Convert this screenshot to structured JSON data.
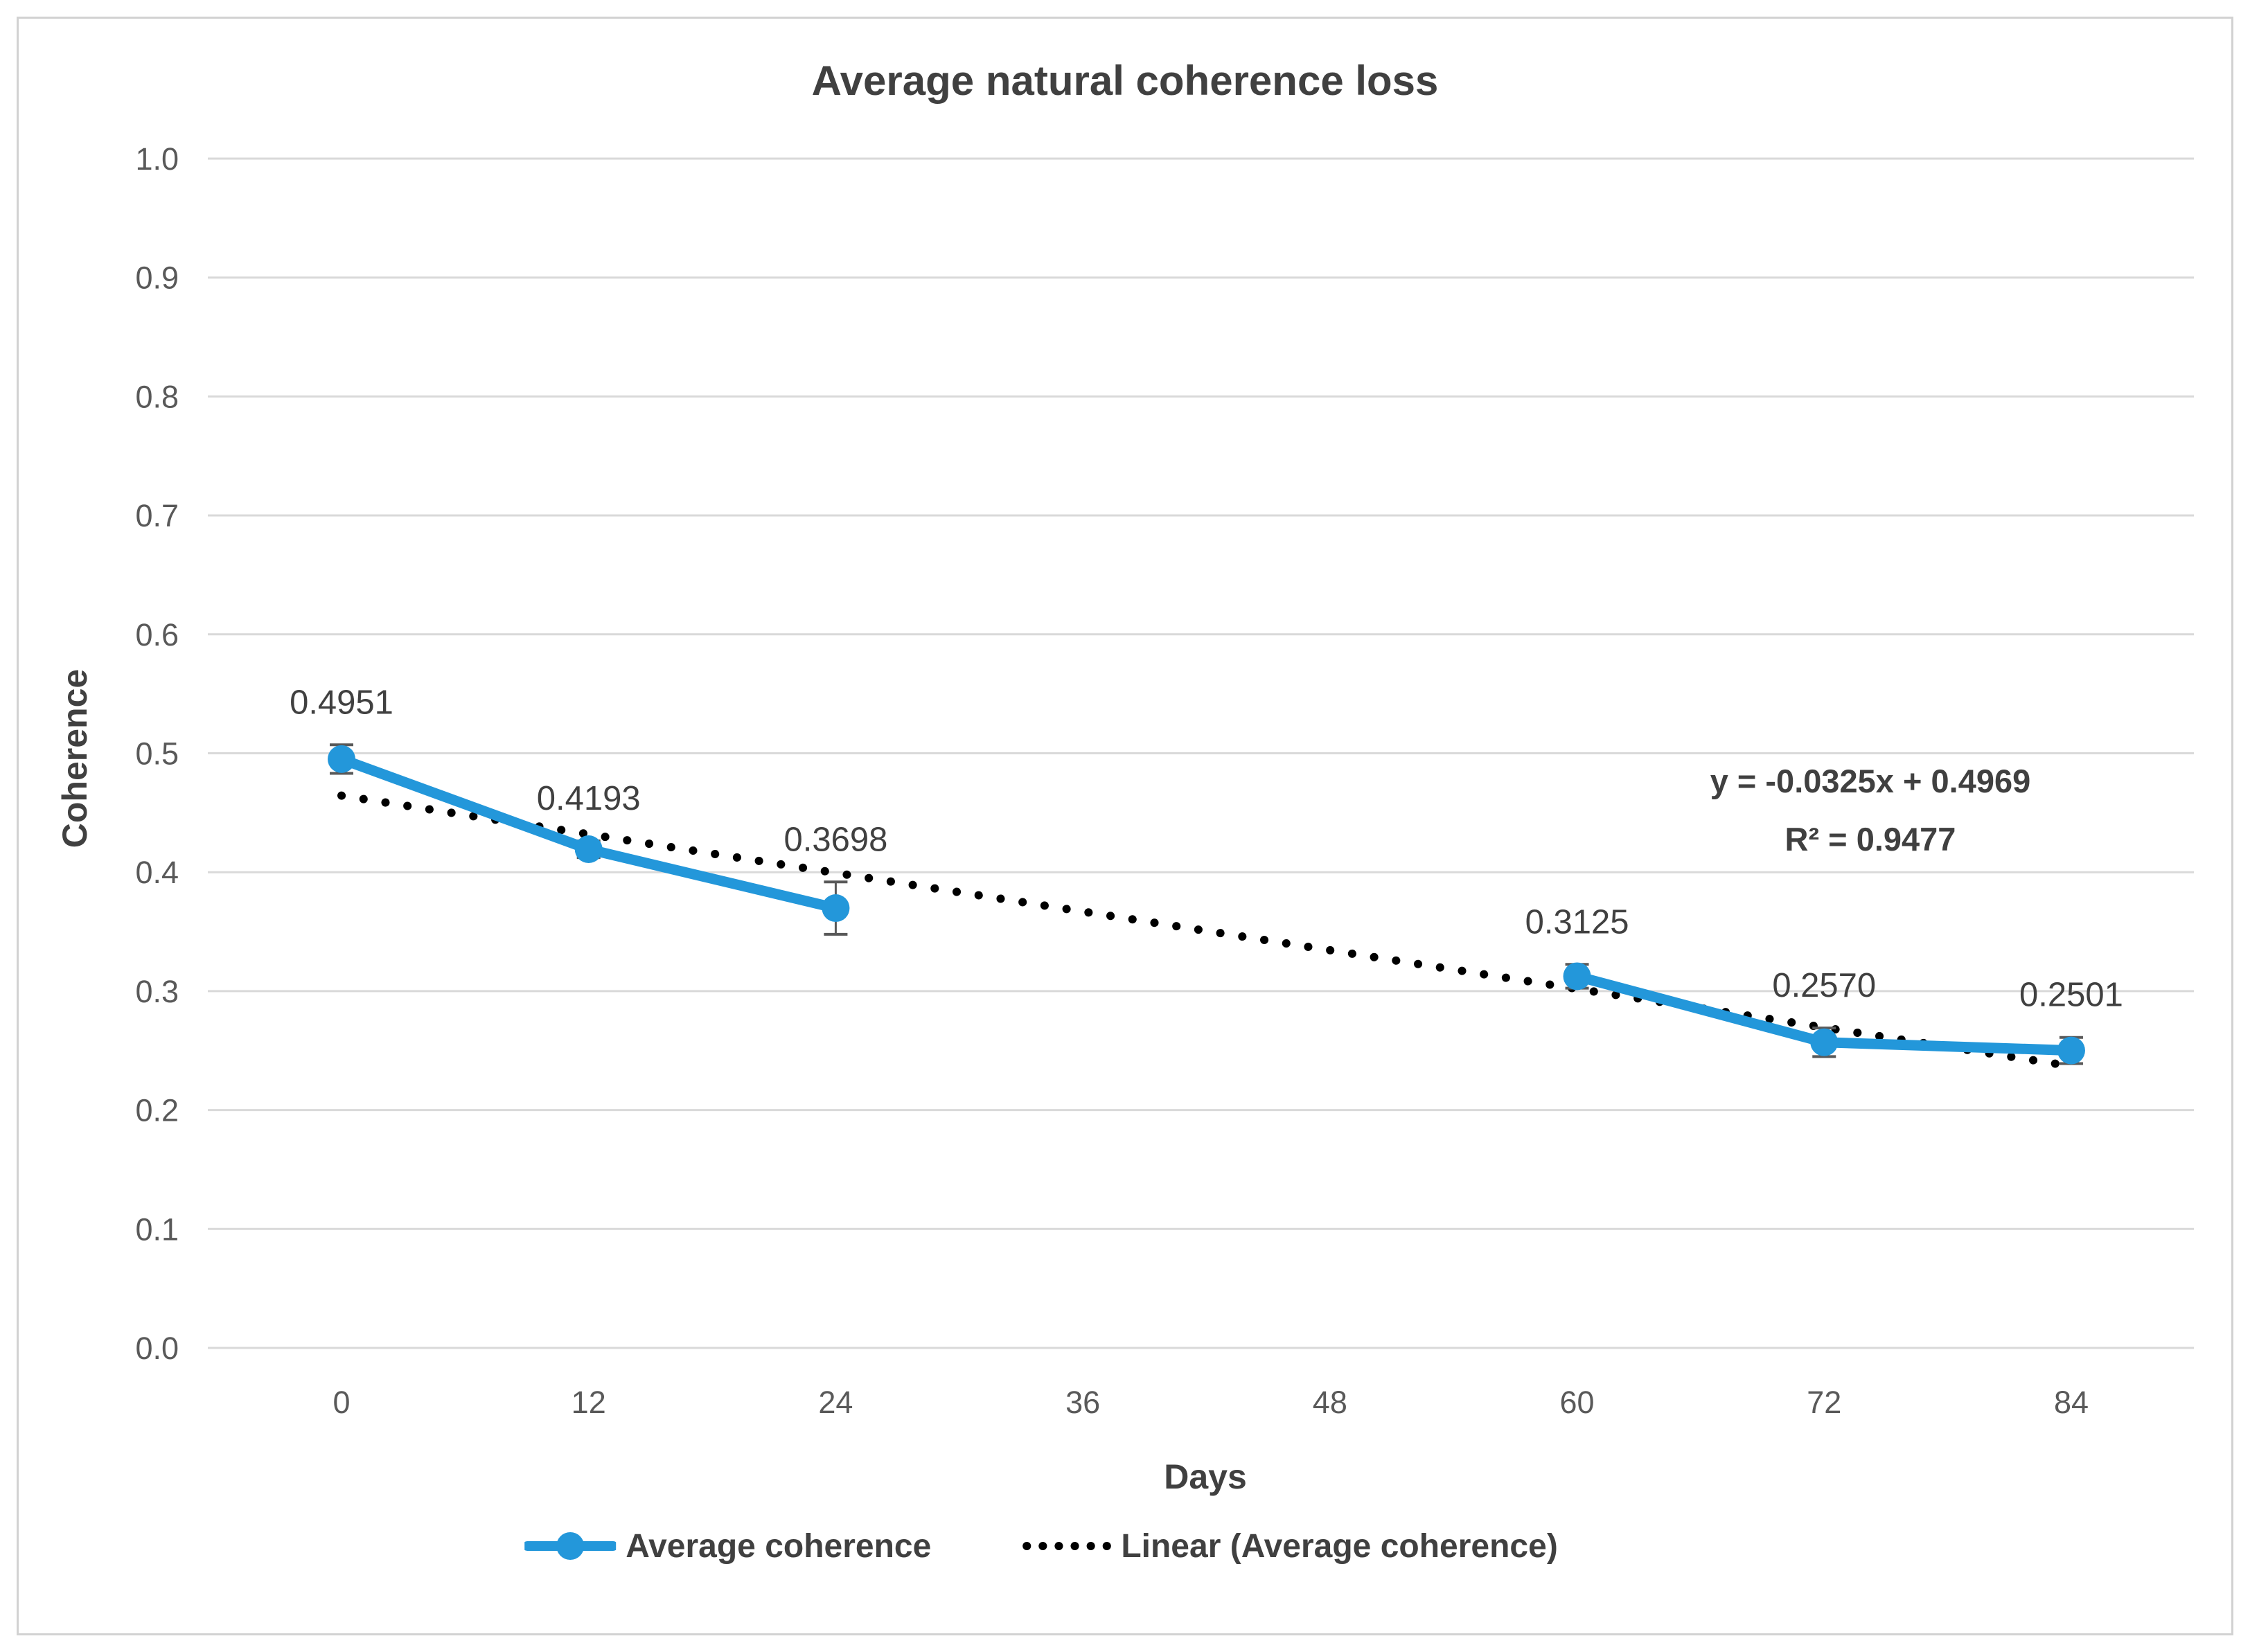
{
  "chart_data": {
    "type": "line",
    "title": "Average natural coherence loss",
    "xlabel": "Days",
    "ylabel": "Coherence",
    "x_categories": [
      "0",
      "12",
      "24",
      "36",
      "48",
      "60",
      "72",
      "84"
    ],
    "y_ticks": [
      "0.0",
      "0.1",
      "0.2",
      "0.3",
      "0.4",
      "0.5",
      "0.6",
      "0.7",
      "0.8",
      "0.9",
      "1.0"
    ],
    "ylim": [
      0.0,
      1.0
    ],
    "grid": "horizontal",
    "legend_position": "bottom",
    "colors": {
      "series_blue": "#2397DA",
      "trendline_black": "#000000",
      "gridline_gray": "#D9D9D9",
      "tick_text_gray": "#595959",
      "label_text_gray": "#404040",
      "error_bar_gray": "#595959"
    },
    "series": [
      {
        "name": "Average coherence",
        "points": [
          {
            "day": 0,
            "value": 0.4951,
            "label": "0.4951",
            "error": 0.012
          },
          {
            "day": 12,
            "value": 0.4193,
            "label": "0.4193",
            "error": 0.007
          },
          {
            "day": 24,
            "value": 0.3698,
            "label": "0.3698",
            "error": 0.022
          },
          {
            "day": 60,
            "value": 0.3125,
            "label": "0.3125",
            "error": 0.01
          },
          {
            "day": 72,
            "value": 0.257,
            "label": "0.2570",
            "error": 0.012
          },
          {
            "day": 84,
            "value": 0.2501,
            "label": "0.2501",
            "error": 0.011
          }
        ]
      }
    ],
    "trendline": {
      "name": "Linear (Average coherence)",
      "equation": "y = -0.0325x + 0.4969",
      "r_squared": "R² = 0.9477",
      "slope": -0.0325,
      "intercept": 0.4969,
      "style": "dotted"
    }
  }
}
